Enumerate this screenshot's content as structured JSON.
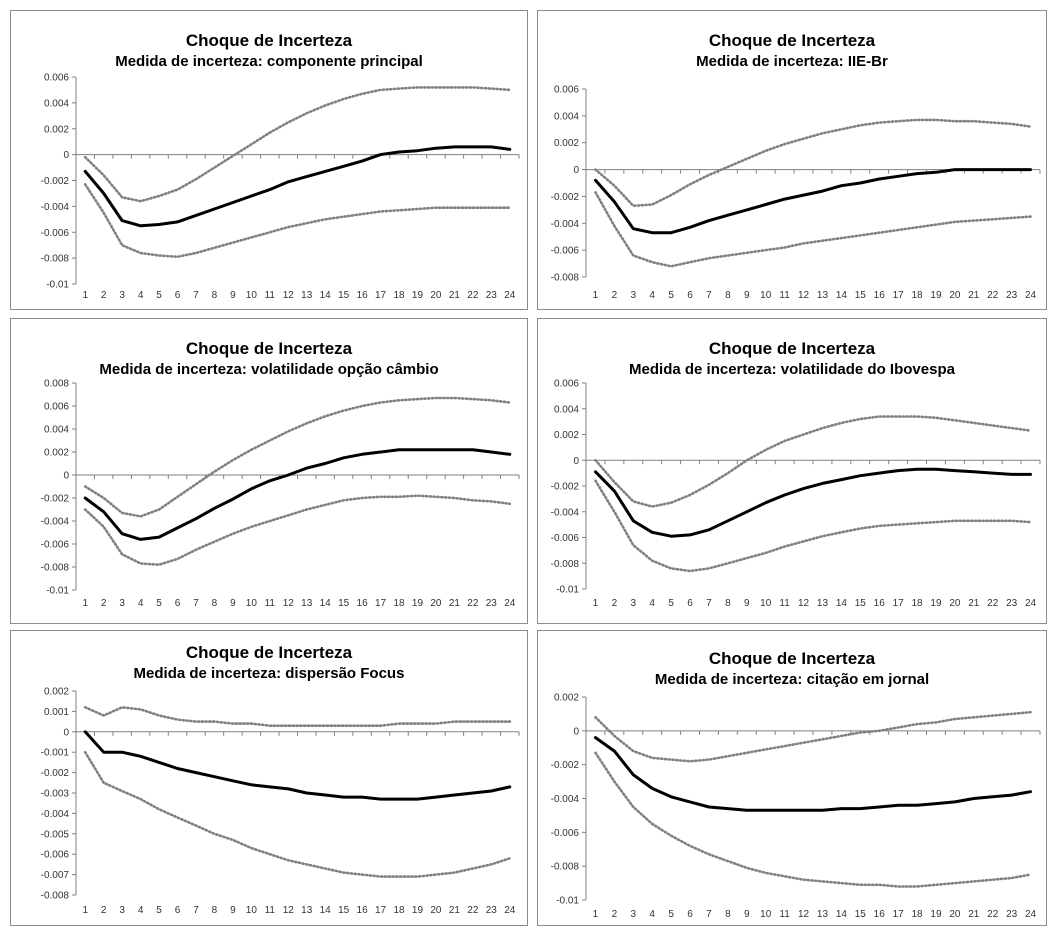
{
  "colors": {
    "line": "#000000",
    "band": "#808080",
    "axis": "#808080",
    "panel_border": "#8c8c8c"
  },
  "chart_data": [
    {
      "type": "line",
      "title": "Choque de Incerteza",
      "subtitle": "Medida de incerteza: componente principal",
      "x": [
        1,
        2,
        3,
        4,
        5,
        6,
        7,
        8,
        9,
        10,
        11,
        12,
        13,
        14,
        15,
        16,
        17,
        18,
        19,
        20,
        21,
        22,
        23,
        24
      ],
      "yticks": [
        "0.006",
        "0.004",
        "0.002",
        "0",
        "-0.002",
        "-0.004",
        "-0.006",
        "-0.008",
        "-0.01"
      ],
      "ylim": [
        -0.01,
        0.006
      ],
      "grid": false,
      "series": [
        {
          "role": "upper",
          "values": [
            -0.0002,
            -0.0016,
            -0.0033,
            -0.0036,
            -0.0032,
            -0.0027,
            -0.0019,
            -0.001,
            -0.0001,
            0.0008,
            0.0017,
            0.0025,
            0.0032,
            0.0038,
            0.0043,
            0.0047,
            0.005,
            0.0051,
            0.0052,
            0.0052,
            0.0052,
            0.0052,
            0.0051,
            0.005
          ]
        },
        {
          "role": "estimate",
          "values": [
            -0.0013,
            -0.003,
            -0.0051,
            -0.0055,
            -0.0054,
            -0.0052,
            -0.0047,
            -0.0042,
            -0.0037,
            -0.0032,
            -0.0027,
            -0.0021,
            -0.0017,
            -0.0013,
            -0.0009,
            -0.0005,
            0.0,
            0.0002,
            0.0003,
            0.0005,
            0.0006,
            0.0006,
            0.0006,
            0.0004
          ]
        },
        {
          "role": "lower",
          "values": [
            -0.0023,
            -0.0045,
            -0.007,
            -0.0076,
            -0.0078,
            -0.0079,
            -0.0076,
            -0.0072,
            -0.0068,
            -0.0064,
            -0.006,
            -0.0056,
            -0.0053,
            -0.005,
            -0.0048,
            -0.0046,
            -0.0044,
            -0.0043,
            -0.0042,
            -0.0041,
            -0.0041,
            -0.0041,
            -0.0041,
            -0.0041
          ]
        }
      ]
    },
    {
      "type": "line",
      "title": "Choque de Incerteza",
      "subtitle": "Medida de incerteza: IIE-Br",
      "x": [
        1,
        2,
        3,
        4,
        5,
        6,
        7,
        8,
        9,
        10,
        11,
        12,
        13,
        14,
        15,
        16,
        17,
        18,
        19,
        20,
        21,
        22,
        23,
        24
      ],
      "yticks": [
        "0.006",
        "0.004",
        "0.002",
        "0",
        "-0.002",
        "-0.004",
        "-0.006",
        "-0.008"
      ],
      "ylim": [
        -0.008,
        0.006
      ],
      "grid": false,
      "series": [
        {
          "role": "upper",
          "values": [
            0.0,
            -0.0012,
            -0.0027,
            -0.0026,
            -0.0019,
            -0.0011,
            -0.0004,
            0.0002,
            0.0008,
            0.0014,
            0.0019,
            0.0023,
            0.0027,
            0.003,
            0.0033,
            0.0035,
            0.0036,
            0.0037,
            0.0037,
            0.0036,
            0.0036,
            0.0035,
            0.0034,
            0.0032
          ]
        },
        {
          "role": "estimate",
          "values": [
            -0.0008,
            -0.0024,
            -0.0044,
            -0.0047,
            -0.0047,
            -0.0043,
            -0.0038,
            -0.0034,
            -0.003,
            -0.0026,
            -0.0022,
            -0.0019,
            -0.0016,
            -0.0012,
            -0.001,
            -0.0007,
            -0.0005,
            -0.0003,
            -0.0002,
            0.0,
            0.0,
            0.0,
            0.0,
            0.0
          ]
        },
        {
          "role": "lower",
          "values": [
            -0.0017,
            -0.0042,
            -0.0064,
            -0.0069,
            -0.0072,
            -0.0069,
            -0.0066,
            -0.0064,
            -0.0062,
            -0.006,
            -0.0058,
            -0.0055,
            -0.0053,
            -0.0051,
            -0.0049,
            -0.0047,
            -0.0045,
            -0.0043,
            -0.0041,
            -0.0039,
            -0.0038,
            -0.0037,
            -0.0036,
            -0.0035
          ]
        }
      ]
    },
    {
      "type": "line",
      "title": "Choque de Incerteza",
      "subtitle": "Medida de incerteza: volatilidade opção câmbio",
      "x": [
        1,
        2,
        3,
        4,
        5,
        6,
        7,
        8,
        9,
        10,
        11,
        12,
        13,
        14,
        15,
        16,
        17,
        18,
        19,
        20,
        21,
        22,
        23,
        24
      ],
      "yticks": [
        "0.008",
        "0.006",
        "0.004",
        "0.002",
        "0",
        "-0.002",
        "-0.004",
        "-0.006",
        "-0.008",
        "-0.01"
      ],
      "ylim": [
        -0.01,
        0.008
      ],
      "grid": false,
      "series": [
        {
          "role": "upper",
          "values": [
            -0.001,
            -0.002,
            -0.0033,
            -0.0036,
            -0.003,
            -0.0019,
            -0.0008,
            0.0003,
            0.0013,
            0.0022,
            0.003,
            0.0038,
            0.0045,
            0.0051,
            0.0056,
            0.006,
            0.0063,
            0.0065,
            0.0066,
            0.0067,
            0.0067,
            0.0066,
            0.0065,
            0.0063
          ]
        },
        {
          "role": "estimate",
          "values": [
            -0.002,
            -0.0032,
            -0.0051,
            -0.0056,
            -0.0054,
            -0.0046,
            -0.0038,
            -0.0029,
            -0.0021,
            -0.0012,
            -0.0005,
            0.0,
            0.0006,
            0.001,
            0.0015,
            0.0018,
            0.002,
            0.0022,
            0.0022,
            0.0022,
            0.0022,
            0.0022,
            0.002,
            0.0018
          ]
        },
        {
          "role": "lower",
          "values": [
            -0.003,
            -0.0045,
            -0.0069,
            -0.0077,
            -0.0078,
            -0.0073,
            -0.0065,
            -0.0058,
            -0.0051,
            -0.0045,
            -0.004,
            -0.0035,
            -0.003,
            -0.0026,
            -0.0022,
            -0.002,
            -0.0019,
            -0.0019,
            -0.0018,
            -0.0019,
            -0.002,
            -0.0022,
            -0.0023,
            -0.0025
          ]
        }
      ]
    },
    {
      "type": "line",
      "title": "Choque de Incerteza",
      "subtitle": "Medida de incerteza: volatilidade do Ibovespa",
      "x": [
        1,
        2,
        3,
        4,
        5,
        6,
        7,
        8,
        9,
        10,
        11,
        12,
        13,
        14,
        15,
        16,
        17,
        18,
        19,
        20,
        21,
        22,
        23,
        24
      ],
      "yticks": [
        "0.006",
        "0.004",
        "0.002",
        "0",
        "-0.002",
        "-0.004",
        "-0.006",
        "-0.008",
        "-0.01"
      ],
      "ylim": [
        -0.01,
        0.006
      ],
      "grid": false,
      "series": [
        {
          "role": "upper",
          "values": [
            0.0,
            -0.0017,
            -0.0032,
            -0.0036,
            -0.0033,
            -0.0027,
            -0.0019,
            -0.001,
            0.0,
            0.0008,
            0.0015,
            0.002,
            0.0025,
            0.0029,
            0.0032,
            0.0034,
            0.0034,
            0.0034,
            0.0033,
            0.0031,
            0.0029,
            0.0027,
            0.0025,
            0.0023
          ]
        },
        {
          "role": "estimate",
          "values": [
            -0.0009,
            -0.0024,
            -0.0047,
            -0.0056,
            -0.0059,
            -0.0058,
            -0.0054,
            -0.0047,
            -0.004,
            -0.0033,
            -0.0027,
            -0.0022,
            -0.0018,
            -0.0015,
            -0.0012,
            -0.001,
            -0.0008,
            -0.0007,
            -0.0007,
            -0.0008,
            -0.0009,
            -0.001,
            -0.0011,
            -0.0011
          ]
        },
        {
          "role": "lower",
          "values": [
            -0.0016,
            -0.004,
            -0.0066,
            -0.0078,
            -0.0084,
            -0.0086,
            -0.0084,
            -0.008,
            -0.0076,
            -0.0072,
            -0.0067,
            -0.0063,
            -0.0059,
            -0.0056,
            -0.0053,
            -0.0051,
            -0.005,
            -0.0049,
            -0.0048,
            -0.0047,
            -0.0047,
            -0.0047,
            -0.0047,
            -0.0048
          ]
        }
      ]
    },
    {
      "type": "line",
      "title": "Choque de Incerteza",
      "subtitle": "Medida de incerteza: dispersão Focus",
      "x": [
        1,
        2,
        3,
        4,
        5,
        6,
        7,
        8,
        9,
        10,
        11,
        12,
        13,
        14,
        15,
        16,
        17,
        18,
        19,
        20,
        21,
        22,
        23,
        24
      ],
      "yticks": [
        "0.002",
        "0.001",
        "0",
        "-0.001",
        "-0.002",
        "-0.003",
        "-0.004",
        "-0.005",
        "-0.006",
        "-0.007",
        "-0.008"
      ],
      "ylim": [
        -0.008,
        0.002
      ],
      "grid": false,
      "series": [
        {
          "role": "upper",
          "values": [
            0.0012,
            0.0008,
            0.0012,
            0.0011,
            0.0008,
            0.0006,
            0.0005,
            0.0005,
            0.0004,
            0.0004,
            0.0003,
            0.0003,
            0.0003,
            0.0003,
            0.0003,
            0.0003,
            0.0003,
            0.0004,
            0.0004,
            0.0004,
            0.0005,
            0.0005,
            0.0005,
            0.0005
          ]
        },
        {
          "role": "estimate",
          "values": [
            0.0,
            -0.001,
            -0.001,
            -0.0012,
            -0.0015,
            -0.0018,
            -0.002,
            -0.0022,
            -0.0024,
            -0.0026,
            -0.0027,
            -0.0028,
            -0.003,
            -0.0031,
            -0.0032,
            -0.0032,
            -0.0033,
            -0.0033,
            -0.0033,
            -0.0032,
            -0.0031,
            -0.003,
            -0.0029,
            -0.0027
          ]
        },
        {
          "role": "lower",
          "values": [
            -0.001,
            -0.0025,
            -0.0029,
            -0.0033,
            -0.0038,
            -0.0042,
            -0.0046,
            -0.005,
            -0.0053,
            -0.0057,
            -0.006,
            -0.0063,
            -0.0065,
            -0.0067,
            -0.0069,
            -0.007,
            -0.0071,
            -0.0071,
            -0.0071,
            -0.007,
            -0.0069,
            -0.0067,
            -0.0065,
            -0.0062
          ]
        }
      ]
    },
    {
      "type": "line",
      "title": "Choque de Incerteza",
      "subtitle": "Medida de incerteza: citação em jornal",
      "x": [
        1,
        2,
        3,
        4,
        5,
        6,
        7,
        8,
        9,
        10,
        11,
        12,
        13,
        14,
        15,
        16,
        17,
        18,
        19,
        20,
        21,
        22,
        23,
        24
      ],
      "yticks": [
        "0.002",
        "0",
        "-0.002",
        "-0.004",
        "-0.006",
        "-0.008",
        "-0.01"
      ],
      "ylim": [
        -0.01,
        0.002
      ],
      "grid": false,
      "series": [
        {
          "role": "upper",
          "values": [
            0.0008,
            -0.0003,
            -0.0012,
            -0.0016,
            -0.0017,
            -0.0018,
            -0.0017,
            -0.0015,
            -0.0013,
            -0.0011,
            -0.0009,
            -0.0007,
            -0.0005,
            -0.0003,
            -0.0001,
            0.0,
            0.0002,
            0.0004,
            0.0005,
            0.0007,
            0.0008,
            0.0009,
            0.001,
            0.0011
          ]
        },
        {
          "role": "estimate",
          "values": [
            -0.0004,
            -0.0012,
            -0.0026,
            -0.0034,
            -0.0039,
            -0.0042,
            -0.0045,
            -0.0046,
            -0.0047,
            -0.0047,
            -0.0047,
            -0.0047,
            -0.0047,
            -0.0046,
            -0.0046,
            -0.0045,
            -0.0044,
            -0.0044,
            -0.0043,
            -0.0042,
            -0.004,
            -0.0039,
            -0.0038,
            -0.0036
          ]
        },
        {
          "role": "lower",
          "values": [
            -0.0013,
            -0.003,
            -0.0045,
            -0.0055,
            -0.0062,
            -0.0068,
            -0.0073,
            -0.0077,
            -0.0081,
            -0.0084,
            -0.0086,
            -0.0088,
            -0.0089,
            -0.009,
            -0.0091,
            -0.0091,
            -0.0092,
            -0.0092,
            -0.0091,
            -0.009,
            -0.0089,
            -0.0088,
            -0.0087,
            -0.0085
          ]
        }
      ]
    }
  ]
}
